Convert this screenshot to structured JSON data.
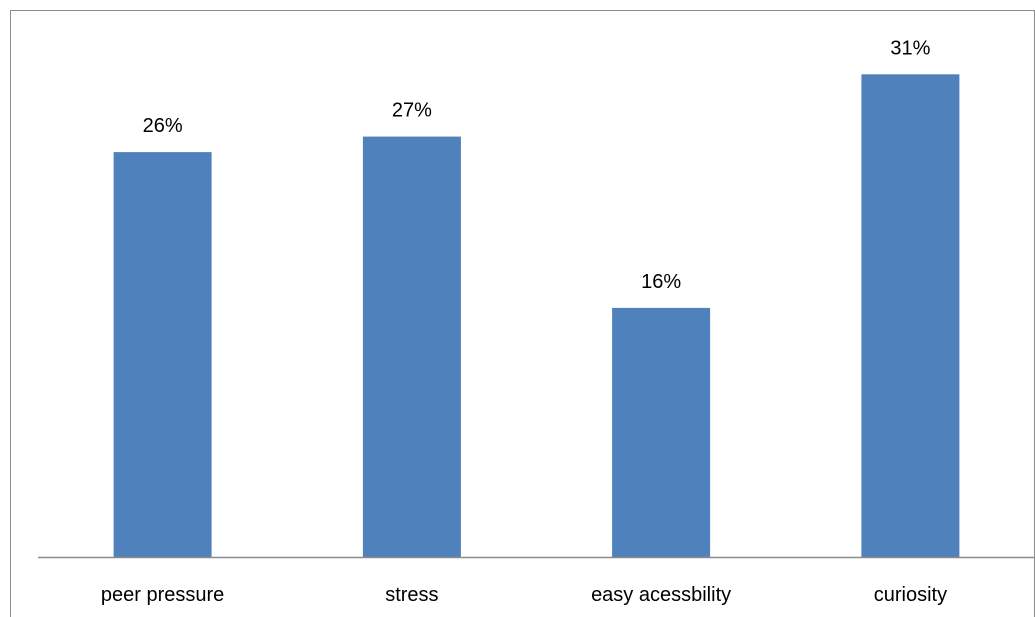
{
  "chart_data": {
    "type": "bar",
    "categories": [
      "peer pressure",
      "stress",
      "easy acessbility",
      "curiosity"
    ],
    "values": [
      26,
      27,
      16,
      31
    ],
    "value_labels": [
      "26%",
      "27%",
      "16%",
      "31%"
    ],
    "title": "",
    "xlabel": "",
    "ylabel": "",
    "ylim": [
      0,
      35
    ],
    "grid": false,
    "legend": "none",
    "colors": {
      "bar": "#4f81bd",
      "axis": "#8c8c8c",
      "border": "#8c8c8c",
      "text": "#000000"
    }
  }
}
